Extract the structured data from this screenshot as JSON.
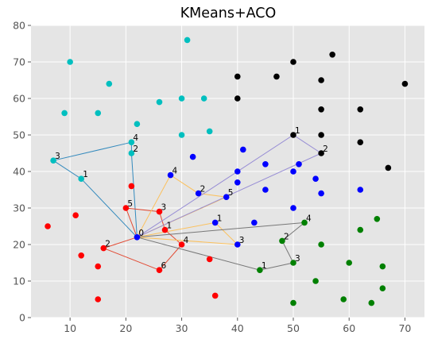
{
  "chart_data": {
    "type": "scatter",
    "title": "KMeans+ACO",
    "xlabel": "",
    "ylabel": "",
    "xlim": [
      3,
      73.5
    ],
    "ylim": [
      0,
      80
    ],
    "xticks": [
      10,
      20,
      30,
      40,
      50,
      60,
      70
    ],
    "yticks": [
      0,
      10,
      20,
      30,
      40,
      50,
      60,
      70,
      80
    ],
    "grid": true,
    "depot": [
      22,
      22
    ],
    "clusters": [
      {
        "color": "#00bfbf",
        "points": [
          [
            10,
            70
          ],
          [
            17,
            64
          ],
          [
            9,
            56
          ],
          [
            15,
            56
          ],
          [
            31,
            76
          ],
          [
            26,
            59
          ],
          [
            30,
            60
          ],
          [
            34,
            60
          ],
          [
            22,
            53
          ],
          [
            30,
            50
          ],
          [
            35,
            51
          ],
          [
            21,
            48
          ],
          [
            21,
            45
          ],
          [
            7,
            43
          ],
          [
            12,
            38
          ]
        ],
        "route_color": "#348abd",
        "route": [
          [
            22,
            22
          ],
          [
            21,
            45
          ],
          [
            21,
            48
          ],
          [
            7,
            43
          ],
          [
            12,
            38
          ],
          [
            22,
            22
          ]
        ],
        "route_labels": [
          {
            "text": "0",
            "x": 22,
            "y": 22
          },
          {
            "text": "1",
            "x": 12,
            "y": 38
          },
          {
            "text": "2",
            "x": 21,
            "y": 45
          },
          {
            "text": "3",
            "x": 7,
            "y": 43
          },
          {
            "text": "4",
            "x": 21,
            "y": 48
          }
        ]
      },
      {
        "color": "#ff0000",
        "points": [
          [
            6,
            25
          ],
          [
            11,
            28
          ],
          [
            12,
            17
          ],
          [
            15,
            14
          ],
          [
            15,
            5
          ],
          [
            16,
            19
          ],
          [
            20,
            30
          ],
          [
            21,
            36
          ],
          [
            26,
            29
          ],
          [
            27,
            24
          ],
          [
            30,
            20
          ],
          [
            26,
            13
          ],
          [
            35,
            16
          ],
          [
            36,
            6
          ]
        ],
        "route_color": "#e24a33",
        "route": [
          [
            22,
            22
          ],
          [
            16,
            19
          ],
          [
            26,
            13
          ],
          [
            30,
            20
          ],
          [
            27,
            24
          ],
          [
            26,
            29
          ],
          [
            20,
            30
          ],
          [
            22,
            22
          ]
        ],
        "route_labels": [
          {
            "text": "1",
            "x": 27,
            "y": 24
          },
          {
            "text": "2",
            "x": 16,
            "y": 19
          },
          {
            "text": "3",
            "x": 26,
            "y": 29
          },
          {
            "text": "4",
            "x": 30,
            "y": 20
          },
          {
            "text": "5",
            "x": 20,
            "y": 30
          },
          {
            "text": "6",
            "x": 26,
            "y": 13
          }
        ]
      },
      {
        "color": "#0000ff",
        "points": [
          [
            28,
            39
          ],
          [
            32,
            44
          ],
          [
            33,
            34
          ],
          [
            38,
            33
          ],
          [
            36,
            26
          ],
          [
            40,
            20
          ],
          [
            40,
            37
          ],
          [
            40,
            40
          ],
          [
            41,
            46
          ],
          [
            43,
            26
          ],
          [
            45,
            35
          ],
          [
            45,
            42
          ],
          [
            50,
            40
          ],
          [
            51,
            42
          ],
          [
            50,
            30
          ],
          [
            54,
            38
          ],
          [
            55,
            34
          ],
          [
            62,
            35
          ]
        ],
        "route_color": "#fbc15e",
        "route": [
          [
            22,
            22
          ],
          [
            36,
            26
          ],
          [
            40,
            20
          ],
          [
            22,
            22
          ],
          [
            28,
            39
          ],
          [
            33,
            34
          ],
          [
            38,
            33
          ],
          [
            22,
            22
          ]
        ],
        "route_labels": [
          {
            "text": "1",
            "x": 36,
            "y": 26
          },
          {
            "text": "2",
            "x": 33,
            "y": 34
          },
          {
            "text": "3",
            "x": 40,
            "y": 20
          },
          {
            "text": "4",
            "x": 28,
            "y": 39
          },
          {
            "text": "5",
            "x": 38,
            "y": 33
          }
        ]
      },
      {
        "color": "#000000",
        "points": [
          [
            57,
            72
          ],
          [
            50,
            70
          ],
          [
            40,
            66
          ],
          [
            47,
            66
          ],
          [
            55,
            65
          ],
          [
            70,
            64
          ],
          [
            40,
            60
          ],
          [
            55,
            57
          ],
          [
            62,
            57
          ],
          [
            50,
            50
          ],
          [
            55,
            50
          ],
          [
            62,
            48
          ],
          [
            55,
            45
          ],
          [
            67,
            41
          ]
        ],
        "route_color": "#988ed5",
        "route": [
          [
            22,
            22
          ],
          [
            50,
            50
          ],
          [
            55,
            45
          ],
          [
            22,
            22
          ]
        ],
        "route_labels": [
          {
            "text": "1",
            "x": 50,
            "y": 50
          },
          {
            "text": "2",
            "x": 55,
            "y": 45
          }
        ]
      },
      {
        "color": "#008000",
        "points": [
          [
            65,
            27
          ],
          [
            52,
            26
          ],
          [
            62,
            24
          ],
          [
            48,
            21
          ],
          [
            55,
            20
          ],
          [
            60,
            15
          ],
          [
            66,
            14
          ],
          [
            44,
            13
          ],
          [
            50,
            15
          ],
          [
            54,
            10
          ],
          [
            66,
            8
          ],
          [
            59,
            5
          ],
          [
            64,
            4
          ],
          [
            50,
            4
          ]
        ],
        "route_color": "#777777",
        "route": [
          [
            22,
            22
          ],
          [
            52,
            26
          ],
          [
            48,
            21
          ],
          [
            50,
            15
          ],
          [
            44,
            13
          ],
          [
            22,
            22
          ]
        ],
        "route_labels": [
          {
            "text": "1",
            "x": 44,
            "y": 13
          },
          {
            "text": "2",
            "x": 48,
            "y": 21
          },
          {
            "text": "3",
            "x": 50,
            "y": 15
          },
          {
            "text": "4",
            "x": 52,
            "y": 26
          }
        ]
      }
    ]
  }
}
